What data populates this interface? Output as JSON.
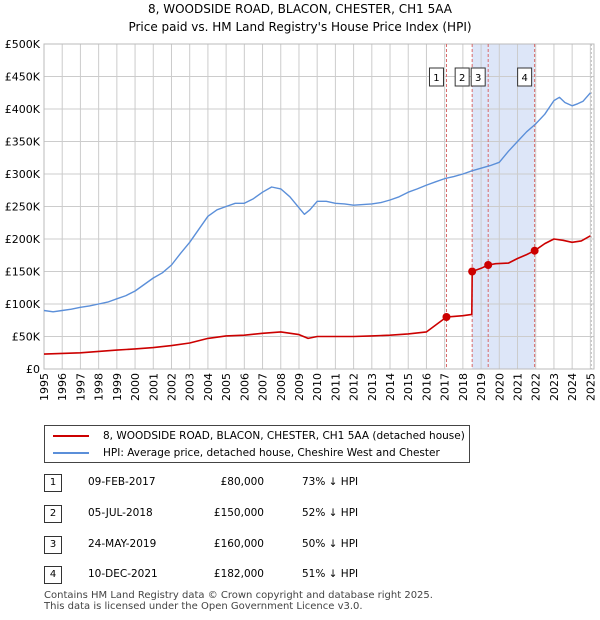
{
  "title_line1": "8, WOODSIDE ROAD, BLACON, CHESTER, CH1 5AA",
  "title_line2": "Price paid vs. HM Land Registry's House Price Index (HPI)",
  "colors": {
    "property": "#cc0000",
    "hpi": "#5b8fd9",
    "highlight": "#dde6f8",
    "marker_line": "#d86a6a",
    "grid": "#cccccc"
  },
  "chart_data": {
    "type": "line",
    "title": "8, WOODSIDE ROAD, BLACON, CHESTER, CH1 5AA — Price paid vs. HM Land Registry's House Price Index (HPI)",
    "xlim": [
      1995,
      2025.2
    ],
    "ylim": [
      0,
      500000
    ],
    "y_ticks": [
      0,
      50000,
      100000,
      150000,
      200000,
      250000,
      300000,
      350000,
      400000,
      450000,
      500000
    ],
    "y_tick_labels": [
      "£0",
      "£50K",
      "£100K",
      "£150K",
      "£200K",
      "£250K",
      "£300K",
      "£350K",
      "£400K",
      "£450K",
      "£500K"
    ],
    "x_ticks": [
      1995,
      1996,
      1997,
      1998,
      1999,
      2000,
      2001,
      2002,
      2003,
      2004,
      2005,
      2006,
      2007,
      2008,
      2009,
      2010,
      2011,
      2012,
      2013,
      2014,
      2015,
      2016,
      2017,
      2018,
      2019,
      2020,
      2021,
      2022,
      2023,
      2024,
      2025
    ],
    "x_tick_labels": [
      "1995",
      "1996",
      "1997",
      "1998",
      "1999",
      "2000",
      "2001",
      "2002",
      "2003",
      "2004",
      "2005",
      "2006",
      "2007",
      "2008",
      "2009",
      "2010",
      "2011",
      "2012",
      "2013",
      "2014",
      "2015",
      "2016",
      "2017",
      "2018",
      "2019",
      "2020",
      "2021",
      "2022",
      "2023",
      "2024",
      "2025"
    ],
    "highlight_ranges": [
      [
        2018.51,
        2019.39
      ],
      [
        2019.39,
        2021.94
      ]
    ],
    "hpi_series": {
      "name": "HPI: Average price, detached house, Cheshire West and Chester",
      "x": [
        1995.0,
        1995.5,
        1996.0,
        1996.5,
        1997.0,
        1997.5,
        1998.0,
        1998.5,
        1999.0,
        1999.5,
        2000.0,
        2000.5,
        2001.0,
        2001.5,
        2002.0,
        2002.5,
        2003.0,
        2003.5,
        2004.0,
        2004.5,
        2005.0,
        2005.5,
        2006.0,
        2006.5,
        2007.0,
        2007.5,
        2008.0,
        2008.5,
        2009.0,
        2009.3,
        2009.6,
        2010.0,
        2010.5,
        2011.0,
        2011.5,
        2012.0,
        2012.5,
        2013.0,
        2013.5,
        2014.0,
        2014.5,
        2015.0,
        2015.5,
        2016.0,
        2016.5,
        2017.0,
        2017.5,
        2018.0,
        2018.5,
        2019.0,
        2019.5,
        2020.0,
        2020.5,
        2021.0,
        2021.5,
        2022.0,
        2022.5,
        2023.0,
        2023.3,
        2023.6,
        2024.0,
        2024.3,
        2024.6,
        2025.0
      ],
      "values": [
        90000,
        88000,
        90000,
        92000,
        95000,
        97000,
        100000,
        103000,
        108000,
        113000,
        120000,
        130000,
        140000,
        148000,
        160000,
        178000,
        195000,
        215000,
        235000,
        245000,
        250000,
        255000,
        255000,
        262000,
        272000,
        280000,
        277000,
        265000,
        248000,
        238000,
        245000,
        258000,
        258000,
        255000,
        254000,
        252000,
        253000,
        254000,
        256000,
        260000,
        265000,
        272000,
        277000,
        283000,
        288000,
        293000,
        296000,
        300000,
        305000,
        309000,
        313000,
        318000,
        335000,
        350000,
        365000,
        377000,
        392000,
        413000,
        418000,
        410000,
        405000,
        408000,
        412000,
        425000
      ]
    },
    "property_series": {
      "name": "8, WOODSIDE ROAD, BLACON, CHESTER, CH1 5AA (detached house)",
      "x": [
        1995.0,
        1996.0,
        1997.0,
        1998.0,
        1999.0,
        2000.0,
        2001.0,
        2002.0,
        2003.0,
        2004.0,
        2005.0,
        2006.0,
        2007.0,
        2008.0,
        2009.0,
        2009.5,
        2010.0,
        2011.0,
        2012.0,
        2013.0,
        2014.0,
        2015.0,
        2016.0,
        2017.1,
        2017.5,
        2018.0,
        2018.49,
        2018.51,
        2019.0,
        2019.39,
        2019.8,
        2020.5,
        2021.0,
        2021.5,
        2021.94,
        2022.5,
        2023.0,
        2023.5,
        2024.0,
        2024.5,
        2025.0
      ],
      "values": [
        23000,
        24000,
        25000,
        27000,
        29000,
        31000,
        33000,
        36000,
        40000,
        47000,
        51000,
        52000,
        55000,
        57000,
        53000,
        47000,
        50000,
        50000,
        50000,
        51000,
        52000,
        54000,
        57000,
        80000,
        81000,
        82000,
        84000,
        150000,
        155000,
        160000,
        162000,
        163000,
        170000,
        176000,
        182000,
        193000,
        200000,
        198000,
        195000,
        197000,
        205000
      ]
    },
    "sales": [
      {
        "id": "1",
        "x": 2017.1,
        "price": 80000
      },
      {
        "id": "2",
        "x": 2018.51,
        "price": 150000
      },
      {
        "id": "3",
        "x": 2019.39,
        "price": 160000
      },
      {
        "id": "4",
        "x": 2021.94,
        "price": 182000
      }
    ]
  },
  "legend": {
    "property_label": "8, WOODSIDE ROAD, BLACON, CHESTER, CH1 5AA (detached house)",
    "hpi_label": "HPI: Average price, detached house, Cheshire West and Chester"
  },
  "transactions": [
    {
      "num": "1",
      "date": "09-FEB-2017",
      "price": "£80,000",
      "hpi": "73% ↓ HPI"
    },
    {
      "num": "2",
      "date": "05-JUL-2018",
      "price": "£150,000",
      "hpi": "52% ↓ HPI"
    },
    {
      "num": "3",
      "date": "24-MAY-2019",
      "price": "£160,000",
      "hpi": "50% ↓ HPI"
    },
    {
      "num": "4",
      "date": "10-DEC-2021",
      "price": "£182,000",
      "hpi": "51% ↓ HPI"
    }
  ],
  "footer_line1": "Contains HM Land Registry data © Crown copyright and database right 2025.",
  "footer_line2": "This data is licensed under the Open Government Licence v3.0."
}
